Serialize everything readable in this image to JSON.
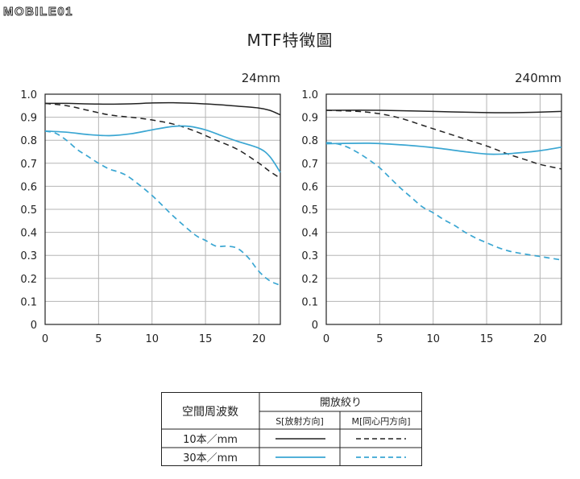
{
  "logo": {
    "text": "MOBILE01"
  },
  "title": "MTF特徵圖",
  "chart_data": [
    {
      "type": "line",
      "title": "24mm",
      "xlim": [
        0,
        22
      ],
      "ylim": [
        0,
        1.0
      ],
      "xticks": [
        "0",
        "5",
        "10",
        "15",
        "20"
      ],
      "yticks": [
        "0",
        "0.1",
        "0.2",
        "0.3",
        "0.4",
        "0.5",
        "0.6",
        "0.7",
        "0.8",
        "0.9",
        "1.0"
      ],
      "grid": true,
      "series": [
        {
          "key": "S10",
          "color": "#222222",
          "dash": "solid",
          "points": [
            [
              0,
              0.96
            ],
            [
              2,
              0.96
            ],
            [
              5,
              0.957
            ],
            [
              8,
              0.958
            ],
            [
              10,
              0.962
            ],
            [
              12,
              0.963
            ],
            [
              14,
              0.96
            ],
            [
              16,
              0.955
            ],
            [
              18,
              0.948
            ],
            [
              20,
              0.94
            ],
            [
              21,
              0.93
            ],
            [
              22,
              0.91
            ]
          ]
        },
        {
          "key": "M10",
          "color": "#222222",
          "dash": "dashed",
          "points": [
            [
              0,
              0.96
            ],
            [
              2,
              0.95
            ],
            [
              4,
              0.93
            ],
            [
              6,
              0.91
            ],
            [
              8,
              0.9
            ],
            [
              10,
              0.888
            ],
            [
              12,
              0.87
            ],
            [
              14,
              0.84
            ],
            [
              16,
              0.8
            ],
            [
              18,
              0.76
            ],
            [
              20,
              0.7
            ],
            [
              21,
              0.665
            ],
            [
              22,
              0.635
            ]
          ]
        },
        {
          "key": "S30",
          "color": "#3aa6d2",
          "dash": "solid",
          "points": [
            [
              0,
              0.84
            ],
            [
              2,
              0.835
            ],
            [
              4,
              0.825
            ],
            [
              6,
              0.82
            ],
            [
              8,
              0.828
            ],
            [
              10,
              0.845
            ],
            [
              12,
              0.86
            ],
            [
              13.5,
              0.86
            ],
            [
              15,
              0.845
            ],
            [
              16.5,
              0.82
            ],
            [
              18,
              0.795
            ],
            [
              20,
              0.765
            ],
            [
              21,
              0.73
            ],
            [
              22,
              0.66
            ]
          ]
        },
        {
          "key": "M30",
          "color": "#3aa6d2",
          "dash": "dashed",
          "points": [
            [
              0,
              0.84
            ],
            [
              1,
              0.83
            ],
            [
              2,
              0.8
            ],
            [
              3,
              0.76
            ],
            [
              4,
              0.73
            ],
            [
              5,
              0.7
            ],
            [
              6,
              0.675
            ],
            [
              7,
              0.66
            ],
            [
              8,
              0.635
            ],
            [
              10,
              0.56
            ],
            [
              12,
              0.47
            ],
            [
              14,
              0.39
            ],
            [
              15,
              0.365
            ],
            [
              16,
              0.34
            ],
            [
              17,
              0.34
            ],
            [
              18,
              0.33
            ],
            [
              19,
              0.29
            ],
            [
              20,
              0.23
            ],
            [
              21,
              0.19
            ],
            [
              22,
              0.17
            ]
          ]
        }
      ]
    },
    {
      "type": "line",
      "title": "240mm",
      "xlim": [
        0,
        22
      ],
      "ylim": [
        0,
        1.0
      ],
      "xticks": [
        "0",
        "5",
        "10",
        "15",
        "20"
      ],
      "yticks": [
        "0",
        "0.1",
        "0.2",
        "0.3",
        "0.4",
        "0.5",
        "0.6",
        "0.7",
        "0.8",
        "0.9",
        "1.0"
      ],
      "grid": true,
      "series": [
        {
          "key": "S10",
          "color": "#222222",
          "dash": "solid",
          "points": [
            [
              0,
              0.93
            ],
            [
              5,
              0.93
            ],
            [
              10,
              0.925
            ],
            [
              15,
              0.92
            ],
            [
              18,
              0.92
            ],
            [
              22,
              0.925
            ]
          ]
        },
        {
          "key": "M10",
          "color": "#222222",
          "dash": "dashed",
          "points": [
            [
              0,
              0.93
            ],
            [
              3,
              0.925
            ],
            [
              5,
              0.915
            ],
            [
              7,
              0.895
            ],
            [
              9,
              0.865
            ],
            [
              11,
              0.835
            ],
            [
              13,
              0.805
            ],
            [
              15,
              0.775
            ],
            [
              17,
              0.74
            ],
            [
              19,
              0.71
            ],
            [
              20,
              0.695
            ],
            [
              22,
              0.675
            ]
          ]
        },
        {
          "key": "S30",
          "color": "#3aa6d2",
          "dash": "solid",
          "points": [
            [
              0,
              0.785
            ],
            [
              4,
              0.787
            ],
            [
              7,
              0.78
            ],
            [
              10,
              0.768
            ],
            [
              13,
              0.75
            ],
            [
              15,
              0.74
            ],
            [
              16.5,
              0.74
            ],
            [
              18,
              0.745
            ],
            [
              20,
              0.755
            ],
            [
              22,
              0.77
            ]
          ]
        },
        {
          "key": "M30",
          "color": "#3aa6d2",
          "dash": "dashed",
          "points": [
            [
              0,
              0.79
            ],
            [
              1,
              0.785
            ],
            [
              2,
              0.77
            ],
            [
              3,
              0.745
            ],
            [
              4,
              0.715
            ],
            [
              5,
              0.68
            ],
            [
              6,
              0.635
            ],
            [
              7,
              0.59
            ],
            [
              8,
              0.55
            ],
            [
              9,
              0.51
            ],
            [
              10,
              0.485
            ],
            [
              11,
              0.455
            ],
            [
              12,
              0.43
            ],
            [
              13,
              0.4
            ],
            [
              14,
              0.375
            ],
            [
              15,
              0.355
            ],
            [
              16,
              0.335
            ],
            [
              17,
              0.32
            ],
            [
              18,
              0.31
            ],
            [
              20,
              0.295
            ],
            [
              22,
              0.28
            ]
          ]
        }
      ]
    }
  ],
  "legend": {
    "header_left": "空間周波数",
    "header_right": "開放絞り",
    "col_s": "S[放射方向]",
    "col_m": "M[同心円方向]",
    "rows": [
      {
        "label": "10本／mm",
        "color": "#222222"
      },
      {
        "label": "30本／mm",
        "color": "#3aa6d2"
      }
    ]
  }
}
